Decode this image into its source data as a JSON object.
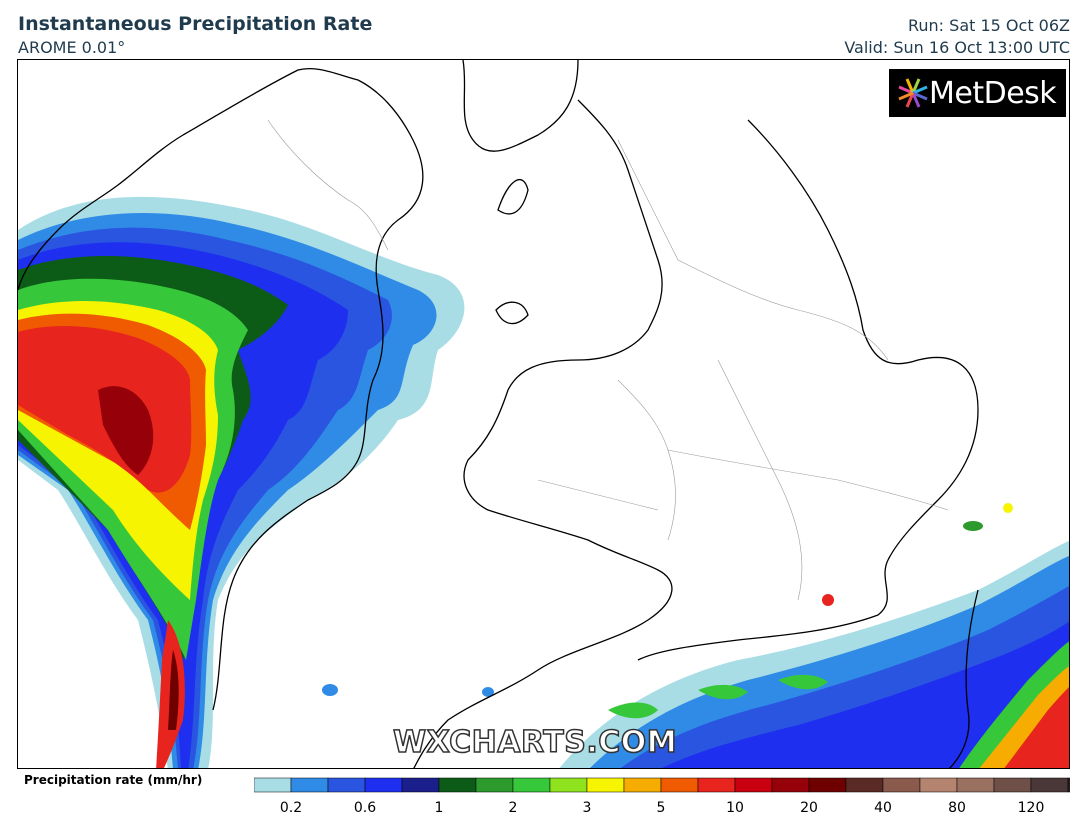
{
  "header": {
    "title": "Instantaneous Precipitation Rate",
    "model": "AROME 0.01°",
    "run": "Run: Sat 15 Oct 06Z",
    "valid": "Valid: Sun 16 Oct 13:00 UTC"
  },
  "logo": {
    "text": "MetDesk"
  },
  "watermark": "WXCHARTS.COM",
  "legend": {
    "label": "Precipitation rate (mm/hr)",
    "colors": [
      "#a8dde6",
      "#2f8be6",
      "#2a55e0",
      "#1e2ff0",
      "#1a1f8c",
      "#0c5c18",
      "#2c9a2c",
      "#36c83a",
      "#8ee21e",
      "#f6f400",
      "#f6ac00",
      "#f05a00",
      "#e8241e",
      "#c80010",
      "#960008",
      "#6e0000",
      "#5a2a24",
      "#8a5a4c",
      "#b48470",
      "#9a7060",
      "#6e5048",
      "#4a3838",
      "#262020"
    ],
    "ticks": [
      "0.2",
      "0.6",
      "1",
      "2",
      "3",
      "5",
      "10",
      "20",
      "40",
      "80",
      "120"
    ]
  }
}
